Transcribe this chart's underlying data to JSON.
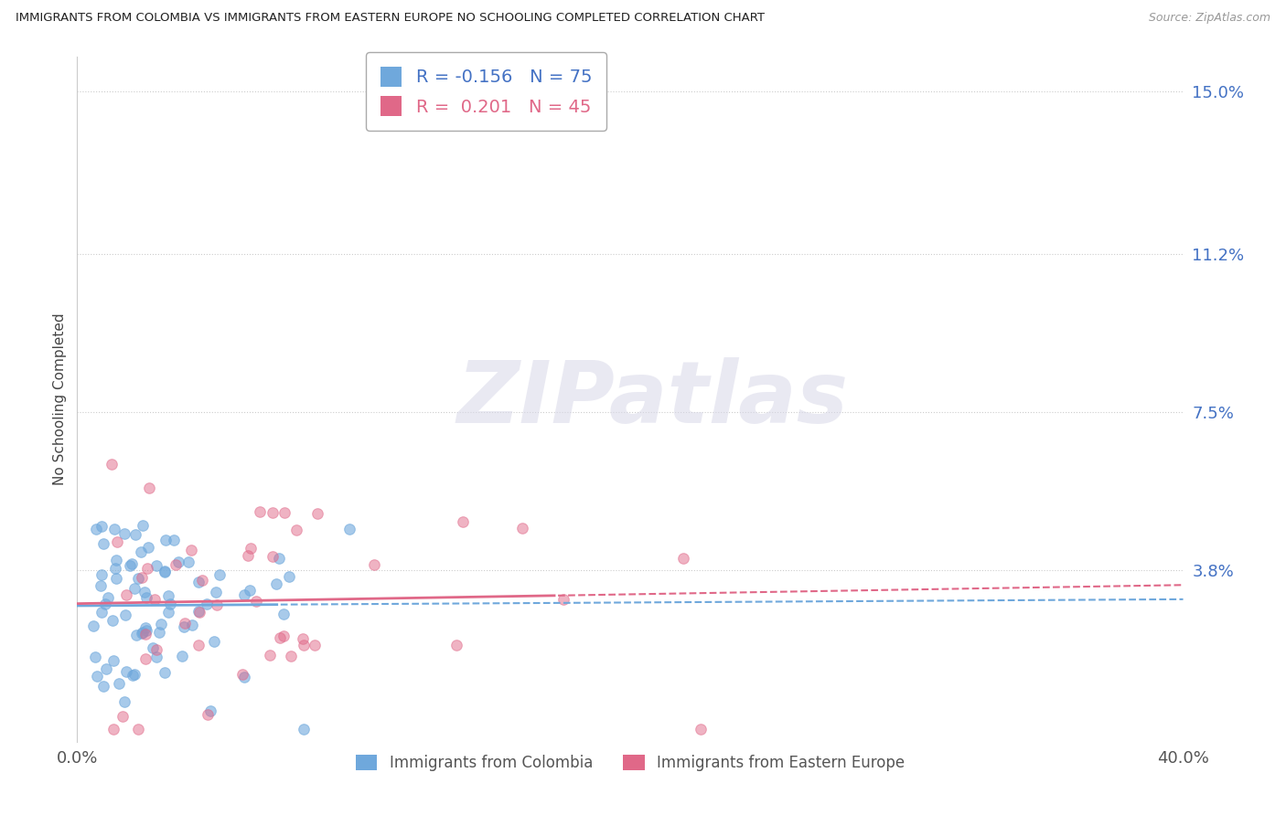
{
  "title": "IMMIGRANTS FROM COLOMBIA VS IMMIGRANTS FROM EASTERN EUROPE NO SCHOOLING COMPLETED CORRELATION CHART",
  "source": "Source: ZipAtlas.com",
  "ylabel": "No Schooling Completed",
  "xlim": [
    0.0,
    0.4
  ],
  "ylim": [
    -0.002,
    0.158
  ],
  "ytick_vals": [
    0.038,
    0.075,
    0.112,
    0.15
  ],
  "ytick_labels": [
    "3.8%",
    "7.5%",
    "11.2%",
    "15.0%"
  ],
  "xtick_vals": [
    0.0,
    0.4
  ],
  "xtick_labels": [
    "0.0%",
    "40.0%"
  ],
  "colombia_color": "#6fa8dc",
  "eastern_europe_color": "#e06888",
  "colombia_R": -0.156,
  "colombia_N": 75,
  "eastern_europe_R": 0.201,
  "eastern_europe_N": 45,
  "background_color": "#ffffff",
  "grid_color": "#cccccc",
  "legend_labels": [
    "Immigrants from Colombia",
    "Immigrants from Eastern Europe"
  ],
  "watermark": "ZIPatlas"
}
